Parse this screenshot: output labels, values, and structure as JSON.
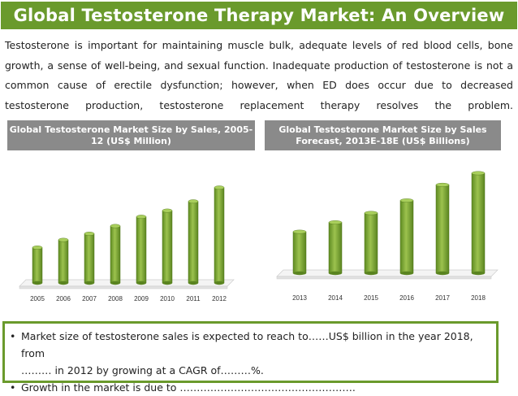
{
  "title": "Global Testosterone Therapy Market: An Overview",
  "intro": "Testosterone is important for maintaining muscle bulk, adequate levels of red blood cells, bone growth, a sense of well-being, and sexual function. Inadequate production of testosterone is not a common cause of erectile dysfunction; however, when ED does occur due to decreased testosterone production, testosterone replacement therapy resolves the problem.",
  "colors": {
    "accent": "#6a9a2c",
    "header_gray": "#8a8a8a",
    "bar": "#7da83a"
  },
  "chart_data": [
    {
      "type": "bar",
      "title": "Global Testosterone Market Size by Sales, 2005-12 (US$ Million)",
      "categories": [
        "2005",
        "2006",
        "2007",
        "2008",
        "2009",
        "2010",
        "2011",
        "2012"
      ],
      "values": [
        46,
        56,
        64,
        74,
        86,
        94,
        106,
        124
      ],
      "ylim": [
        0,
        130
      ],
      "grid": false
    },
    {
      "type": "bar",
      "title": "Global Testosterone Market Size by Sales Forecast, 2013E-18E (US$ Billions)",
      "categories": [
        "2013",
        "2014",
        "2015",
        "2016",
        "2017",
        "2018"
      ],
      "values": [
        53,
        65,
        77,
        93,
        113,
        128
      ],
      "ylim": [
        0,
        130
      ],
      "grid": false
    }
  ],
  "notes": {
    "bullet1_line1": "Market size of testosterone sales is expected to reach to……US$ billion in the year 2018, from",
    "bullet1_line2": "……… in 2012 by growing at a CAGR of………%.",
    "bullet2": "Growth in the market is due to ……………………………………………."
  }
}
